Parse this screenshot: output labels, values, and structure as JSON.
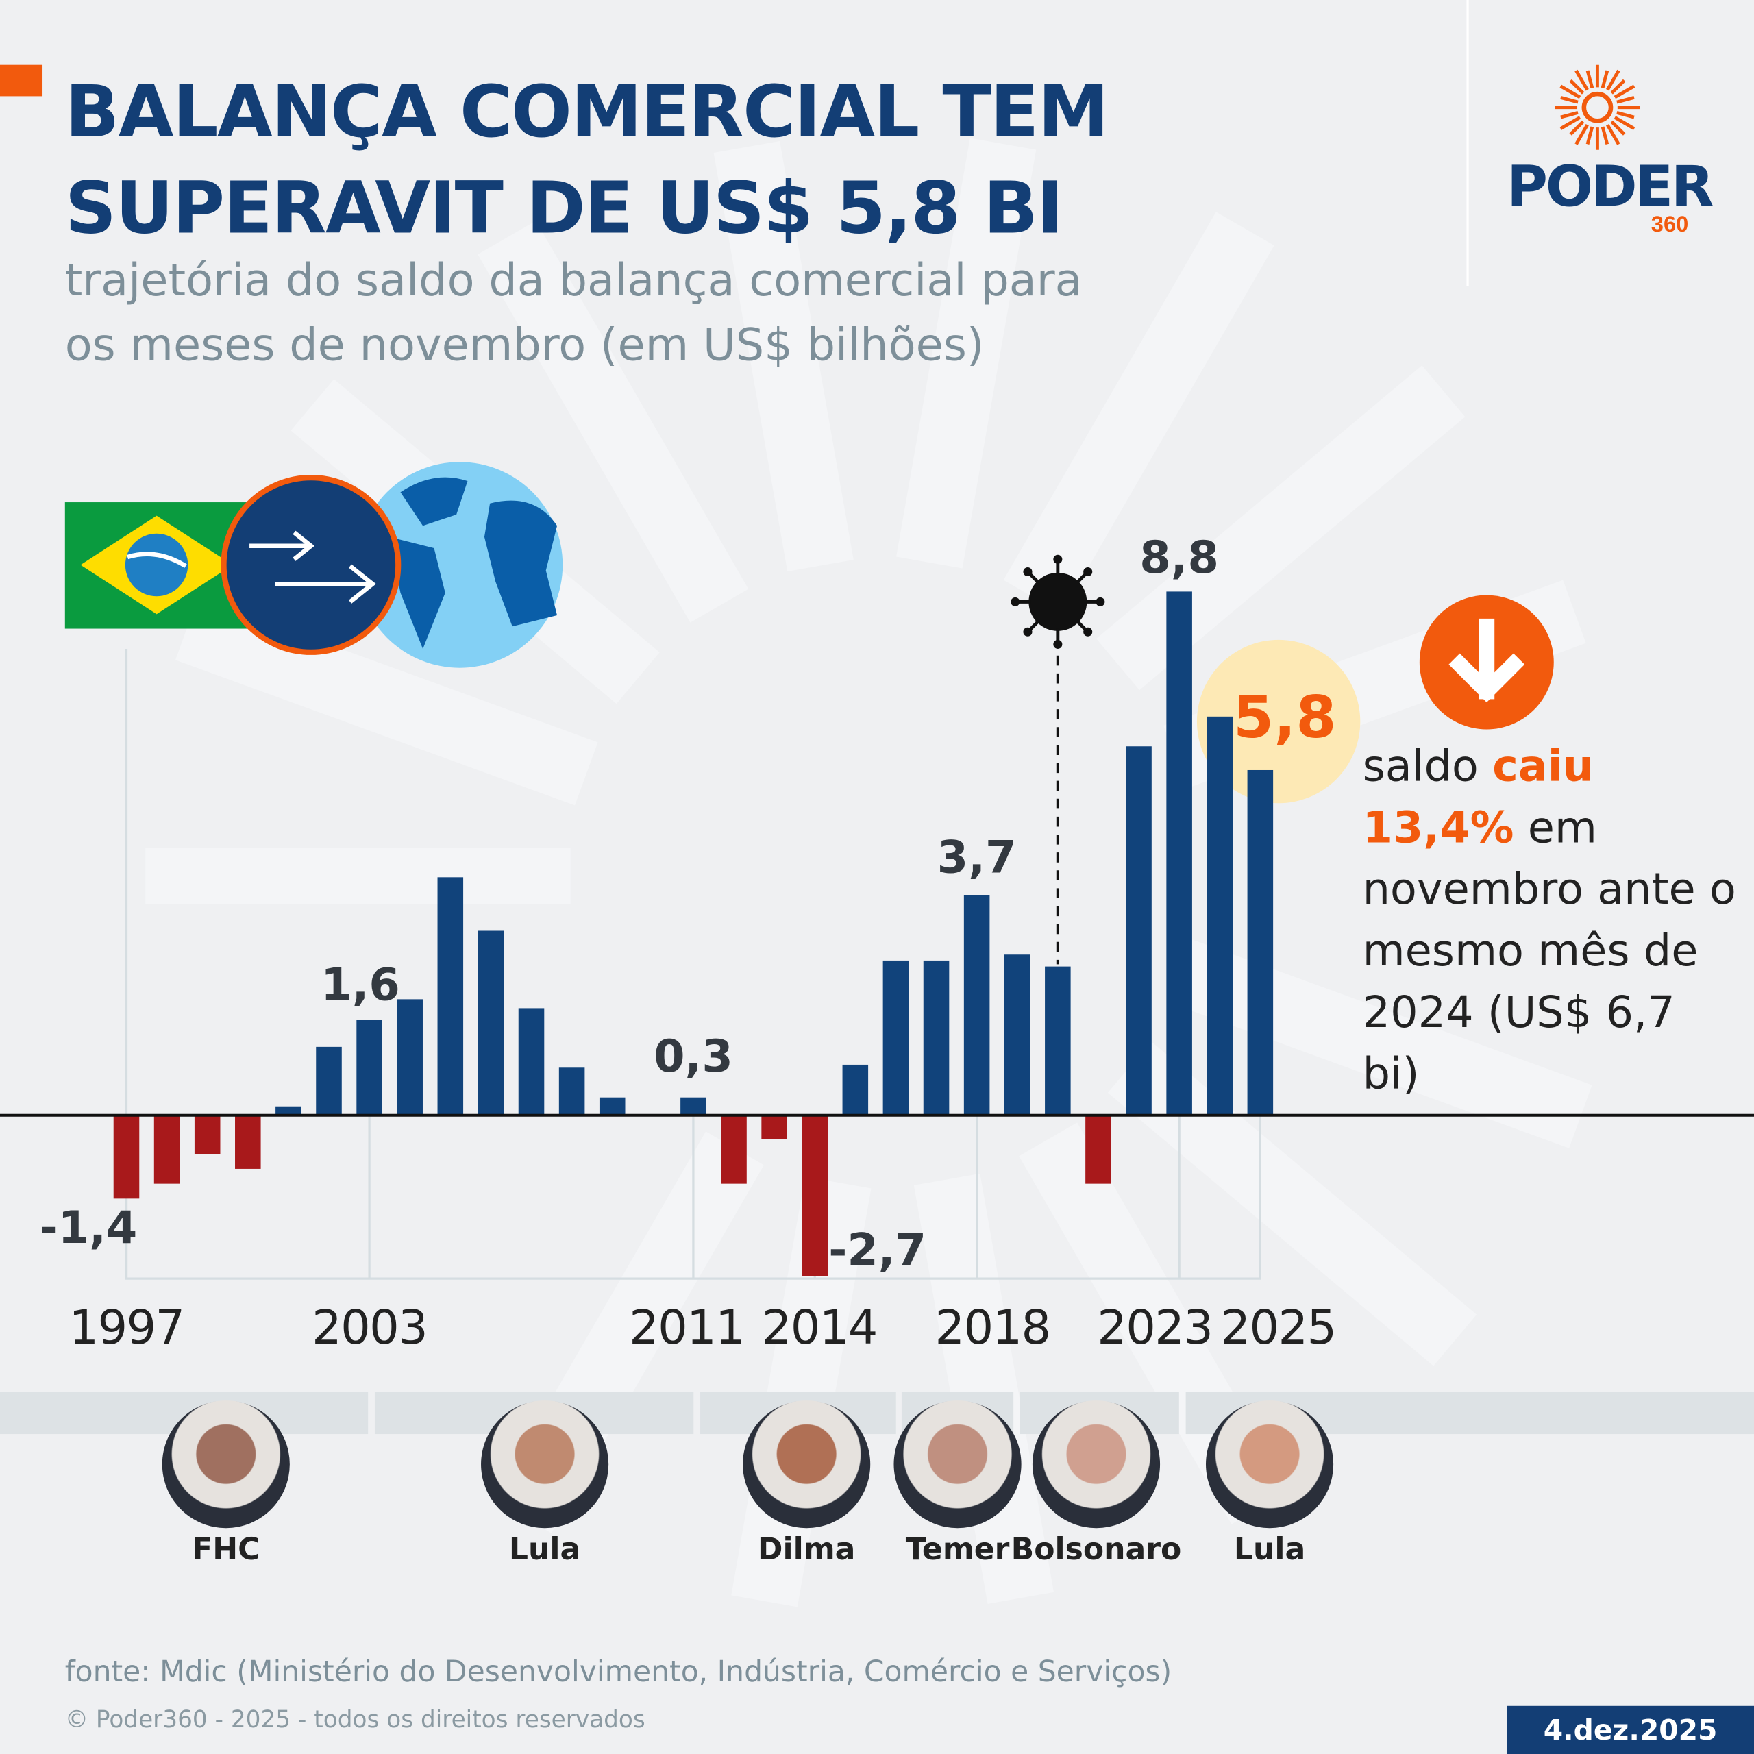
{
  "header": {
    "title_line1": "BALANÇA COMERCIAL TEM",
    "title_line2": "SUPERAVIT DE US$ 5,8 BI",
    "subtitle_line1": "trajetória do saldo da balança comercial para",
    "subtitle_line2": "os meses de novembro (em US$ bilhões)"
  },
  "logo": {
    "word": "PODER",
    "number": "360"
  },
  "colors": {
    "positive": "#11437b",
    "negative": "#a8191b",
    "accent": "#f25a0d",
    "brand": "#133e75"
  },
  "chart_data": {
    "type": "bar",
    "title": "trajetória do saldo da balança comercial para os meses de novembro (em US$ bilhões)",
    "xlabel": "",
    "ylabel": "US$ bilhões",
    "categories": [
      1997,
      1998,
      1999,
      2000,
      2001,
      2002,
      2003,
      2004,
      2005,
      2006,
      2007,
      2008,
      2009,
      2010,
      2011,
      2012,
      2013,
      2014,
      2015,
      2016,
      2017,
      2018,
      2019,
      2020,
      2021,
      2022,
      2023,
      2024,
      2025
    ],
    "values": [
      -1.4,
      -1.15,
      -0.65,
      -0.9,
      0.15,
      1.15,
      1.6,
      1.95,
      4.0,
      3.1,
      1.8,
      0.8,
      0.3,
      0,
      0.3,
      -1.15,
      -0.4,
      -2.7,
      0.85,
      2.6,
      2.6,
      3.7,
      2.7,
      2.5,
      -1.15,
      6.2,
      8.8,
      6.7,
      5.8
    ],
    "ylim": [
      -2.7,
      8.8
    ],
    "tick_labels": [
      "1997",
      "2003",
      "2011",
      "2014",
      "2018",
      "2023",
      "2025"
    ],
    "data_labels": [
      {
        "year": 1997,
        "text": "-1,4"
      },
      {
        "year": 2003,
        "text": "1,6"
      },
      {
        "year": 2011,
        "text": "0,3"
      },
      {
        "year": 2014,
        "text": "-2,7"
      },
      {
        "year": 2018,
        "text": "3,7"
      },
      {
        "year": 2023,
        "text": "8,8"
      },
      {
        "year": 2025,
        "text": "5,8"
      }
    ],
    "annotation": "covid-19 (2020)"
  },
  "presidents": [
    {
      "name": "FHC"
    },
    {
      "name": "Lula"
    },
    {
      "name": "Dilma"
    },
    {
      "name": "Temer"
    },
    {
      "name": "Bolsonaro"
    },
    {
      "name": "Lula"
    }
  ],
  "note": {
    "p1": "saldo ",
    "p2": "caiu",
    "p3": "13,4%",
    "p4": " em novembro ante o mesmo mês de 2024 (US$ 6,7 bi)"
  },
  "footer": {
    "source": "fonte: Mdic (Ministério do Desenvolvimento, Indústria, Comércio e Serviços)",
    "copyright": "© Poder360 - 2025 - todos os direitos reservados",
    "date": "4.dez.2025"
  }
}
